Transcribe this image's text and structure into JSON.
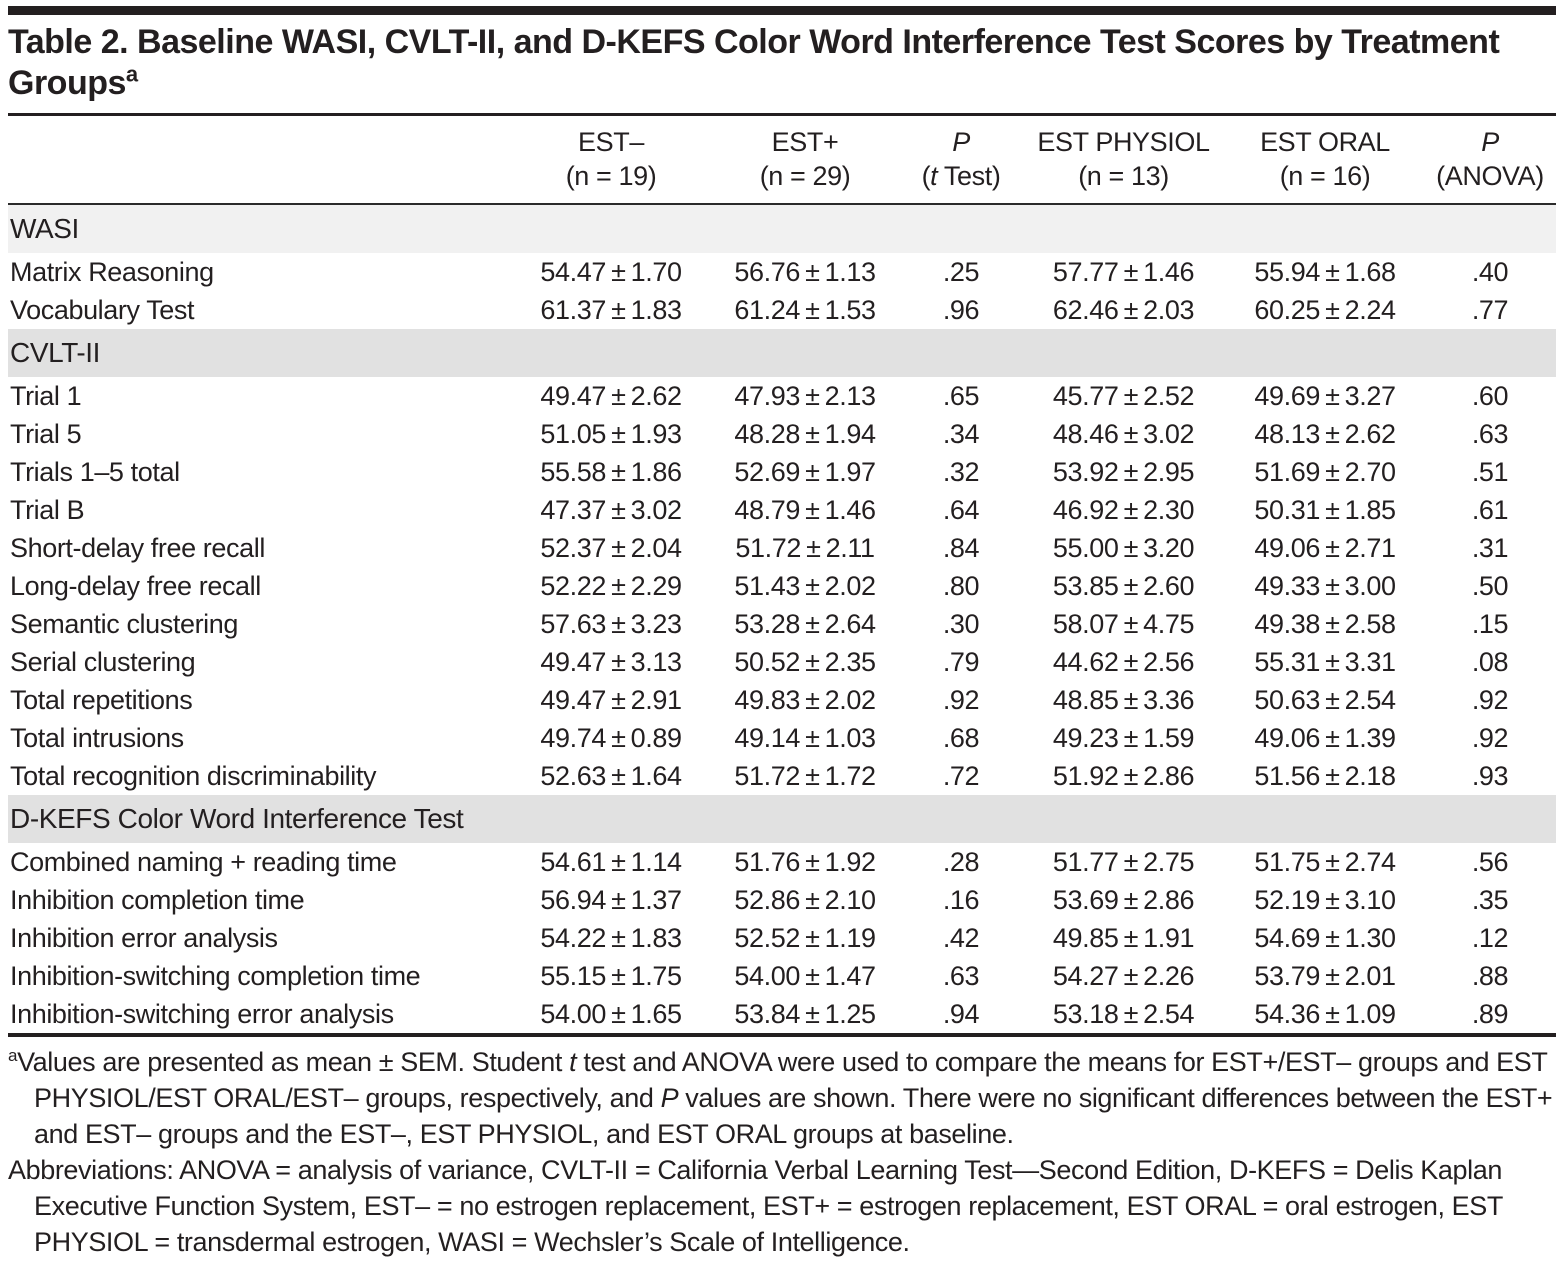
{
  "title": {
    "line1": "Table 2. Baseline WASI, CVLT-II, and D-KEFS Color Word Interference Test Scores by Treatment",
    "line2": "Groups",
    "marker": "a"
  },
  "table": {
    "columns": [
      {
        "top": "EST–",
        "bottom": "(n = 19)"
      },
      {
        "top": "EST+",
        "bottom": "(n = 29)"
      },
      {
        "top": "P",
        "top_italic": true,
        "bottom_parts": [
          {
            "t": "("
          },
          {
            "t": "t",
            "i": true
          },
          {
            "t": " Test)"
          }
        ]
      },
      {
        "top": "EST PHYSIOL",
        "bottom": "(n = 13)"
      },
      {
        "top": "EST ORAL",
        "bottom": "(n = 16)"
      },
      {
        "top": "P",
        "top_italic": true,
        "bottom": "(ANOVA)"
      }
    ],
    "sections": [
      {
        "header": "WASI",
        "shade": "light",
        "rows": [
          {
            "label": "Matrix Reasoning",
            "values": [
              "54.47 ± 1.70",
              "56.76 ± 1.13",
              ".25",
              "57.77 ± 1.46",
              "55.94 ± 1.68",
              ".40"
            ]
          },
          {
            "label": "Vocabulary Test",
            "values": [
              "61.37 ± 1.83",
              "61.24 ± 1.53",
              ".96",
              "62.46 ± 2.03",
              "60.25 ± 2.24",
              ".77"
            ]
          }
        ]
      },
      {
        "header": "CVLT-II",
        "shade": "dark",
        "rows": [
          {
            "label": "Trial 1",
            "values": [
              "49.47 ± 2.62",
              "47.93 ± 2.13",
              ".65",
              "45.77 ± 2.52",
              "49.69 ± 3.27",
              ".60"
            ]
          },
          {
            "label": "Trial 5",
            "values": [
              "51.05 ± 1.93",
              "48.28 ± 1.94",
              ".34",
              "48.46 ± 3.02",
              "48.13 ± 2.62",
              ".63"
            ]
          },
          {
            "label": "Trials 1–5 total",
            "values": [
              "55.58 ± 1.86",
              "52.69 ± 1.97",
              ".32",
              "53.92 ± 2.95",
              "51.69 ± 2.70",
              ".51"
            ]
          },
          {
            "label": "Trial B",
            "values": [
              "47.37 ± 3.02",
              "48.79 ± 1.46",
              ".64",
              "46.92 ± 2.30",
              "50.31 ± 1.85",
              ".61"
            ]
          },
          {
            "label": "Short-delay free recall",
            "values": [
              "52.37 ± 2.04",
              "51.72 ± 2.11",
              ".84",
              "55.00 ± 3.20",
              "49.06 ± 2.71",
              ".31"
            ]
          },
          {
            "label": "Long-delay free recall",
            "values": [
              "52.22 ± 2.29",
              "51.43 ± 2.02",
              ".80",
              "53.85 ± 2.60",
              "49.33 ± 3.00",
              ".50"
            ]
          },
          {
            "label": "Semantic clustering",
            "values": [
              "57.63 ± 3.23",
              "53.28 ± 2.64",
              ".30",
              "58.07 ± 4.75",
              "49.38 ± 2.58",
              ".15"
            ]
          },
          {
            "label": "Serial clustering",
            "values": [
              "49.47 ± 3.13",
              "50.52 ± 2.35",
              ".79",
              "44.62 ± 2.56",
              "55.31 ± 3.31",
              ".08"
            ]
          },
          {
            "label": "Total repetitions",
            "values": [
              "49.47 ± 2.91",
              "49.83 ± 2.02",
              ".92",
              "48.85 ± 3.36",
              "50.63 ± 2.54",
              ".92"
            ]
          },
          {
            "label": "Total intrusions",
            "values": [
              "49.74 ± 0.89",
              "49.14 ± 1.03",
              ".68",
              "49.23 ± 1.59",
              "49.06 ± 1.39",
              ".92"
            ]
          },
          {
            "label": "Total recognition discriminability",
            "values": [
              "52.63 ± 1.64",
              "51.72 ± 1.72",
              ".72",
              "51.92 ± 2.86",
              "51.56 ± 2.18",
              ".93"
            ]
          }
        ]
      },
      {
        "header": "D-KEFS Color Word Interference Test",
        "shade": "dark",
        "rows": [
          {
            "label": "Combined naming + reading time",
            "values": [
              "54.61 ± 1.14",
              "51.76 ± 1.92",
              ".28",
              "51.77 ± 2.75",
              "51.75 ± 2.74",
              ".56"
            ]
          },
          {
            "label": "Inhibition completion time",
            "values": [
              "56.94 ± 1.37",
              "52.86 ± 2.10",
              ".16",
              "53.69 ± 2.86",
              "52.19 ± 3.10",
              ".35"
            ]
          },
          {
            "label": "Inhibition error analysis",
            "values": [
              "54.22 ± 1.83",
              "52.52 ± 1.19",
              ".42",
              "49.85 ± 1.91",
              "54.69 ± 1.30",
              ".12"
            ]
          },
          {
            "label": "Inhibition-switching completion time",
            "values": [
              "55.15 ± 1.75",
              "54.00 ± 1.47",
              ".63",
              "54.27 ± 2.26",
              "53.79 ± 2.01",
              ".88"
            ]
          },
          {
            "label": "Inhibition-switching error analysis",
            "values": [
              "54.00 ± 1.65",
              "53.84 ± 1.25",
              ".94",
              "53.18 ± 2.54",
              "54.36 ± 1.09",
              ".89"
            ]
          }
        ]
      }
    ]
  },
  "footnotes": {
    "note_marker": "a",
    "note_parts": [
      {
        "t": "Values are presented as mean ± SEM. Student "
      },
      {
        "t": "t",
        "i": true
      },
      {
        "t": " test and ANOVA were used to compare the means for EST+/EST– groups and EST PHYSIOL/EST ORAL/EST– groups, respectively, and "
      },
      {
        "t": "P",
        "i": true
      },
      {
        "t": " values are shown. There were no significant differences between the EST+ and EST– groups and the EST–, EST PHYSIOL, and EST ORAL groups at baseline."
      }
    ],
    "abbreviations_parts": [
      {
        "t": "Abbreviations: ANOVA = analysis of variance, CVLT-II = California Verbal Learning Test—Second Edition, D-KEFS = Delis Kaplan Executive Function System, EST– = no estrogen replacement, EST+ = estrogen replacement, EST ORAL = oral estrogen, EST PHYSIOL = transdermal estrogen, WASI = Wechsler’s Scale of Intelligence."
      }
    ]
  }
}
